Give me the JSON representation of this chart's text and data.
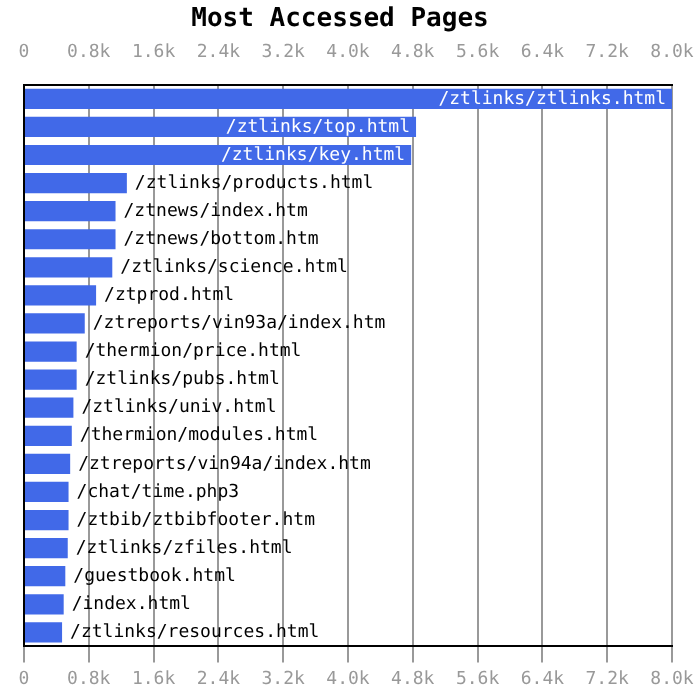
{
  "chart_data": {
    "type": "bar",
    "orientation": "horizontal",
    "title": "Most Accessed Pages",
    "categories": [
      "/ztlinks/ztlinks.html",
      "/ztlinks/top.html",
      "/ztlinks/key.html",
      "/ztlinks/products.html",
      "/ztnews/index.htm",
      "/ztnews/bottom.htm",
      "/ztlinks/science.html",
      "/ztprod.html",
      "/ztreports/vin93a/index.htm",
      "/thermion/price.html",
      "/ztlinks/pubs.html",
      "/ztlinks/univ.html",
      "/thermion/modules.html",
      "/ztreports/vin94a/index.htm",
      "/chat/time.php3",
      "/ztbib/ztbibfooter.htm",
      "/ztlinks/zfiles.html",
      "/guestbook.html",
      "/index.html",
      "/ztlinks/resources.html"
    ],
    "values": [
      8000,
      4840,
      4780,
      1270,
      1130,
      1130,
      1090,
      890,
      750,
      650,
      650,
      610,
      590,
      570,
      550,
      550,
      540,
      510,
      490,
      470
    ],
    "color": "#4169e8",
    "xlim": [
      0,
      8000
    ],
    "xticks": [
      0,
      {
        "value": 800,
        "label": "0.8k"
      },
      {
        "value": 1600,
        "label": "1.6k"
      },
      {
        "value": 2400,
        "label": "2.4k"
      },
      {
        "value": 3200,
        "label": "3.2k"
      },
      {
        "value": 4000,
        "label": "4.0k"
      },
      {
        "value": 4800,
        "label": "4.8k"
      },
      {
        "value": 5600,
        "label": "5.6k"
      },
      {
        "value": 6400,
        "label": "6.4k"
      },
      {
        "value": 7200,
        "label": "7.2k"
      },
      {
        "value": 8000,
        "label": "8.0k"
      }
    ],
    "x2lim": [
      0,
      8000
    ],
    "x2ticks": [
      0,
      {
        "value": 800,
        "label": "0.8k"
      },
      {
        "value": 1600,
        "label": "1.6k"
      },
      {
        "value": 2400,
        "label": "2.4k"
      },
      {
        "value": 3200,
        "label": "3.2k"
      },
      {
        "value": 4000,
        "label": "4.0k"
      },
      {
        "value": 4800,
        "label": "4.8k"
      },
      {
        "value": 5600,
        "label": "5.6k"
      },
      {
        "value": 6400,
        "label": "6.4k"
      },
      {
        "value": 7200,
        "label": "7.2k"
      },
      {
        "value": 8000,
        "label": "8.0k"
      }
    ],
    "grid": "x",
    "tick_labels": "x",
    "legend": false
  }
}
